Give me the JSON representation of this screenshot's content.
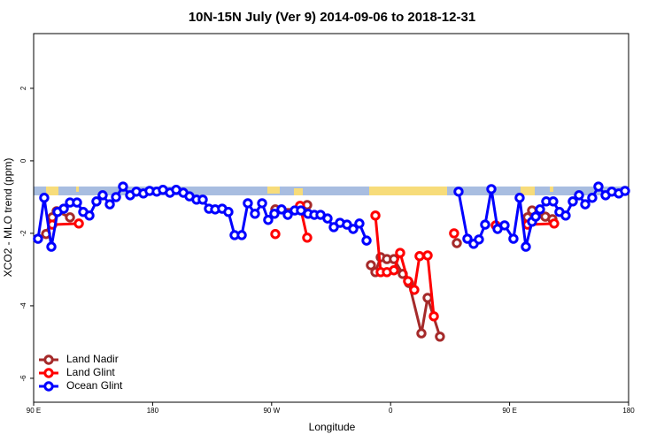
{
  "chart_data": {
    "type": "line",
    "title": "10N-15N July (Ver 9)   2014-09-06 to 2018-12-31",
    "x_label": "Longitude",
    "y_label": "XCO2 - MLO trend (ppm)",
    "xlim": [
      90,
      540
    ],
    "ylim": [
      -6.66,
      3.51
    ],
    "xticks": [
      {
        "value": 90,
        "label": "90 E"
      },
      180,
      {
        "value": 270,
        "label": "90 W"
      },
      {
        "value": 360,
        "label": "0"
      },
      {
        "value": 450,
        "label": "90 E"
      },
      180
    ],
    "yticks": [
      -6,
      -4,
      -2,
      0,
      2
    ],
    "legend": "bottom-left",
    "series": [
      {
        "name": "Land Nadir",
        "color": "#a52a2a",
        "x": [
          99.4,
          104.1,
          107.4,
          117.5,
          200,
          272.8,
          291.5,
          296.9,
          340,
          345.1,
          348.5,
          352.5,
          357.2,
          362.5,
          369.2,
          373.9,
          383.3,
          388,
          397.3,
          405,
          410.1,
          430,
          463.6,
          467,
          477,
          480,
          482.4
        ],
        "values": [
          -2.02,
          -1.56,
          -1.39,
          -1.56,
          null,
          -1.34,
          -1.34,
          -1.22,
          null,
          -2.88,
          -3.07,
          -2.66,
          -2.71,
          -2.71,
          -3.12,
          -3.37,
          -4.76,
          -3.78,
          -4.85,
          null,
          -2.27,
          null,
          -1.56,
          -1.37,
          -1.54,
          null,
          -1.61
        ]
      },
      {
        "name": "Land Glint",
        "color": "#ff0000",
        "x": [
          104.1,
          124.2,
          200,
          272.8,
          285,
          291.5,
          296.9,
          320,
          348.5,
          352.5,
          357.2,
          362.5,
          367.2,
          373.2,
          377.9,
          381.9,
          388,
          392.7,
          400,
          408,
          420,
          439.5,
          450,
          463.6,
          483.7
        ],
        "values": [
          -1.76,
          -1.73,
          null,
          -2.02,
          null,
          -1.24,
          -2.12,
          null,
          -1.51,
          -3.07,
          -3.07,
          -3.02,
          -2.54,
          -3.32,
          -3.56,
          -2.63,
          -2.61,
          -4.29,
          null,
          -2.0,
          null,
          -1.78,
          null,
          -1.76,
          -1.73
        ]
      },
      {
        "name": "Ocean Glint",
        "color": "#0000ff",
        "x": [
          93.3,
          98,
          103.4,
          108.1,
          112.8,
          117.5,
          122.8,
          127.5,
          132.2,
          137.5,
          142.2,
          147.6,
          152.3,
          157.6,
          163,
          167.7,
          173,
          177.7,
          183.1,
          187.8,
          193.1,
          197.8,
          203.2,
          207.9,
          213.2,
          217.9,
          222.6,
          227.3,
          232.6,
          237.3,
          242,
          247.4,
          252,
          257.4,
          262.8,
          267.4,
          272.1,
          277.5,
          282.2,
          287.5,
          292.2,
          297.6,
          302.3,
          307,
          312.3,
          317,
          321.7,
          327,
          331.7,
          336.4,
          341.8,
          380,
          411.4,
          418.1,
          422.8,
          426.8,
          431.5,
          436.2,
          440.9,
          446.2,
          452.9,
          457.6,
          462.3,
          467,
          469.7,
          473,
          477.7,
          483,
          487.7,
          492.4,
          497.8,
          502.5,
          507.2,
          512.5,
          517.2,
          522.6,
          527.3,
          532.6,
          537.3
        ],
        "values": [
          -2.15,
          -1.02,
          -2.37,
          -1.41,
          -1.32,
          -1.15,
          -1.15,
          -1.41,
          -1.51,
          -1.12,
          -0.95,
          -1.2,
          -1.0,
          -0.71,
          -0.95,
          -0.85,
          -0.9,
          -0.83,
          -0.85,
          -0.8,
          -0.88,
          -0.8,
          -0.88,
          -0.98,
          -1.07,
          -1.07,
          -1.32,
          -1.34,
          -1.32,
          -1.41,
          -2.05,
          -2.05,
          -1.17,
          -1.46,
          -1.17,
          -1.63,
          -1.46,
          -1.34,
          -1.49,
          -1.37,
          -1.37,
          -1.46,
          -1.49,
          -1.49,
          -1.59,
          -1.83,
          -1.71,
          -1.76,
          -1.88,
          -1.73,
          -2.2,
          null,
          -0.85,
          -2.15,
          -2.29,
          -2.17,
          -1.76,
          -0.78,
          -1.88,
          -1.78,
          -2.15,
          -1.02,
          -2.37,
          -1.68,
          -1.54,
          -1.34,
          -1.12,
          -1.12,
          -1.41,
          -1.51,
          -1.12,
          -0.95,
          -1.2,
          -1.02,
          -0.71,
          -0.95,
          -0.85,
          -0.9,
          -0.83
        ]
      }
    ]
  }
}
